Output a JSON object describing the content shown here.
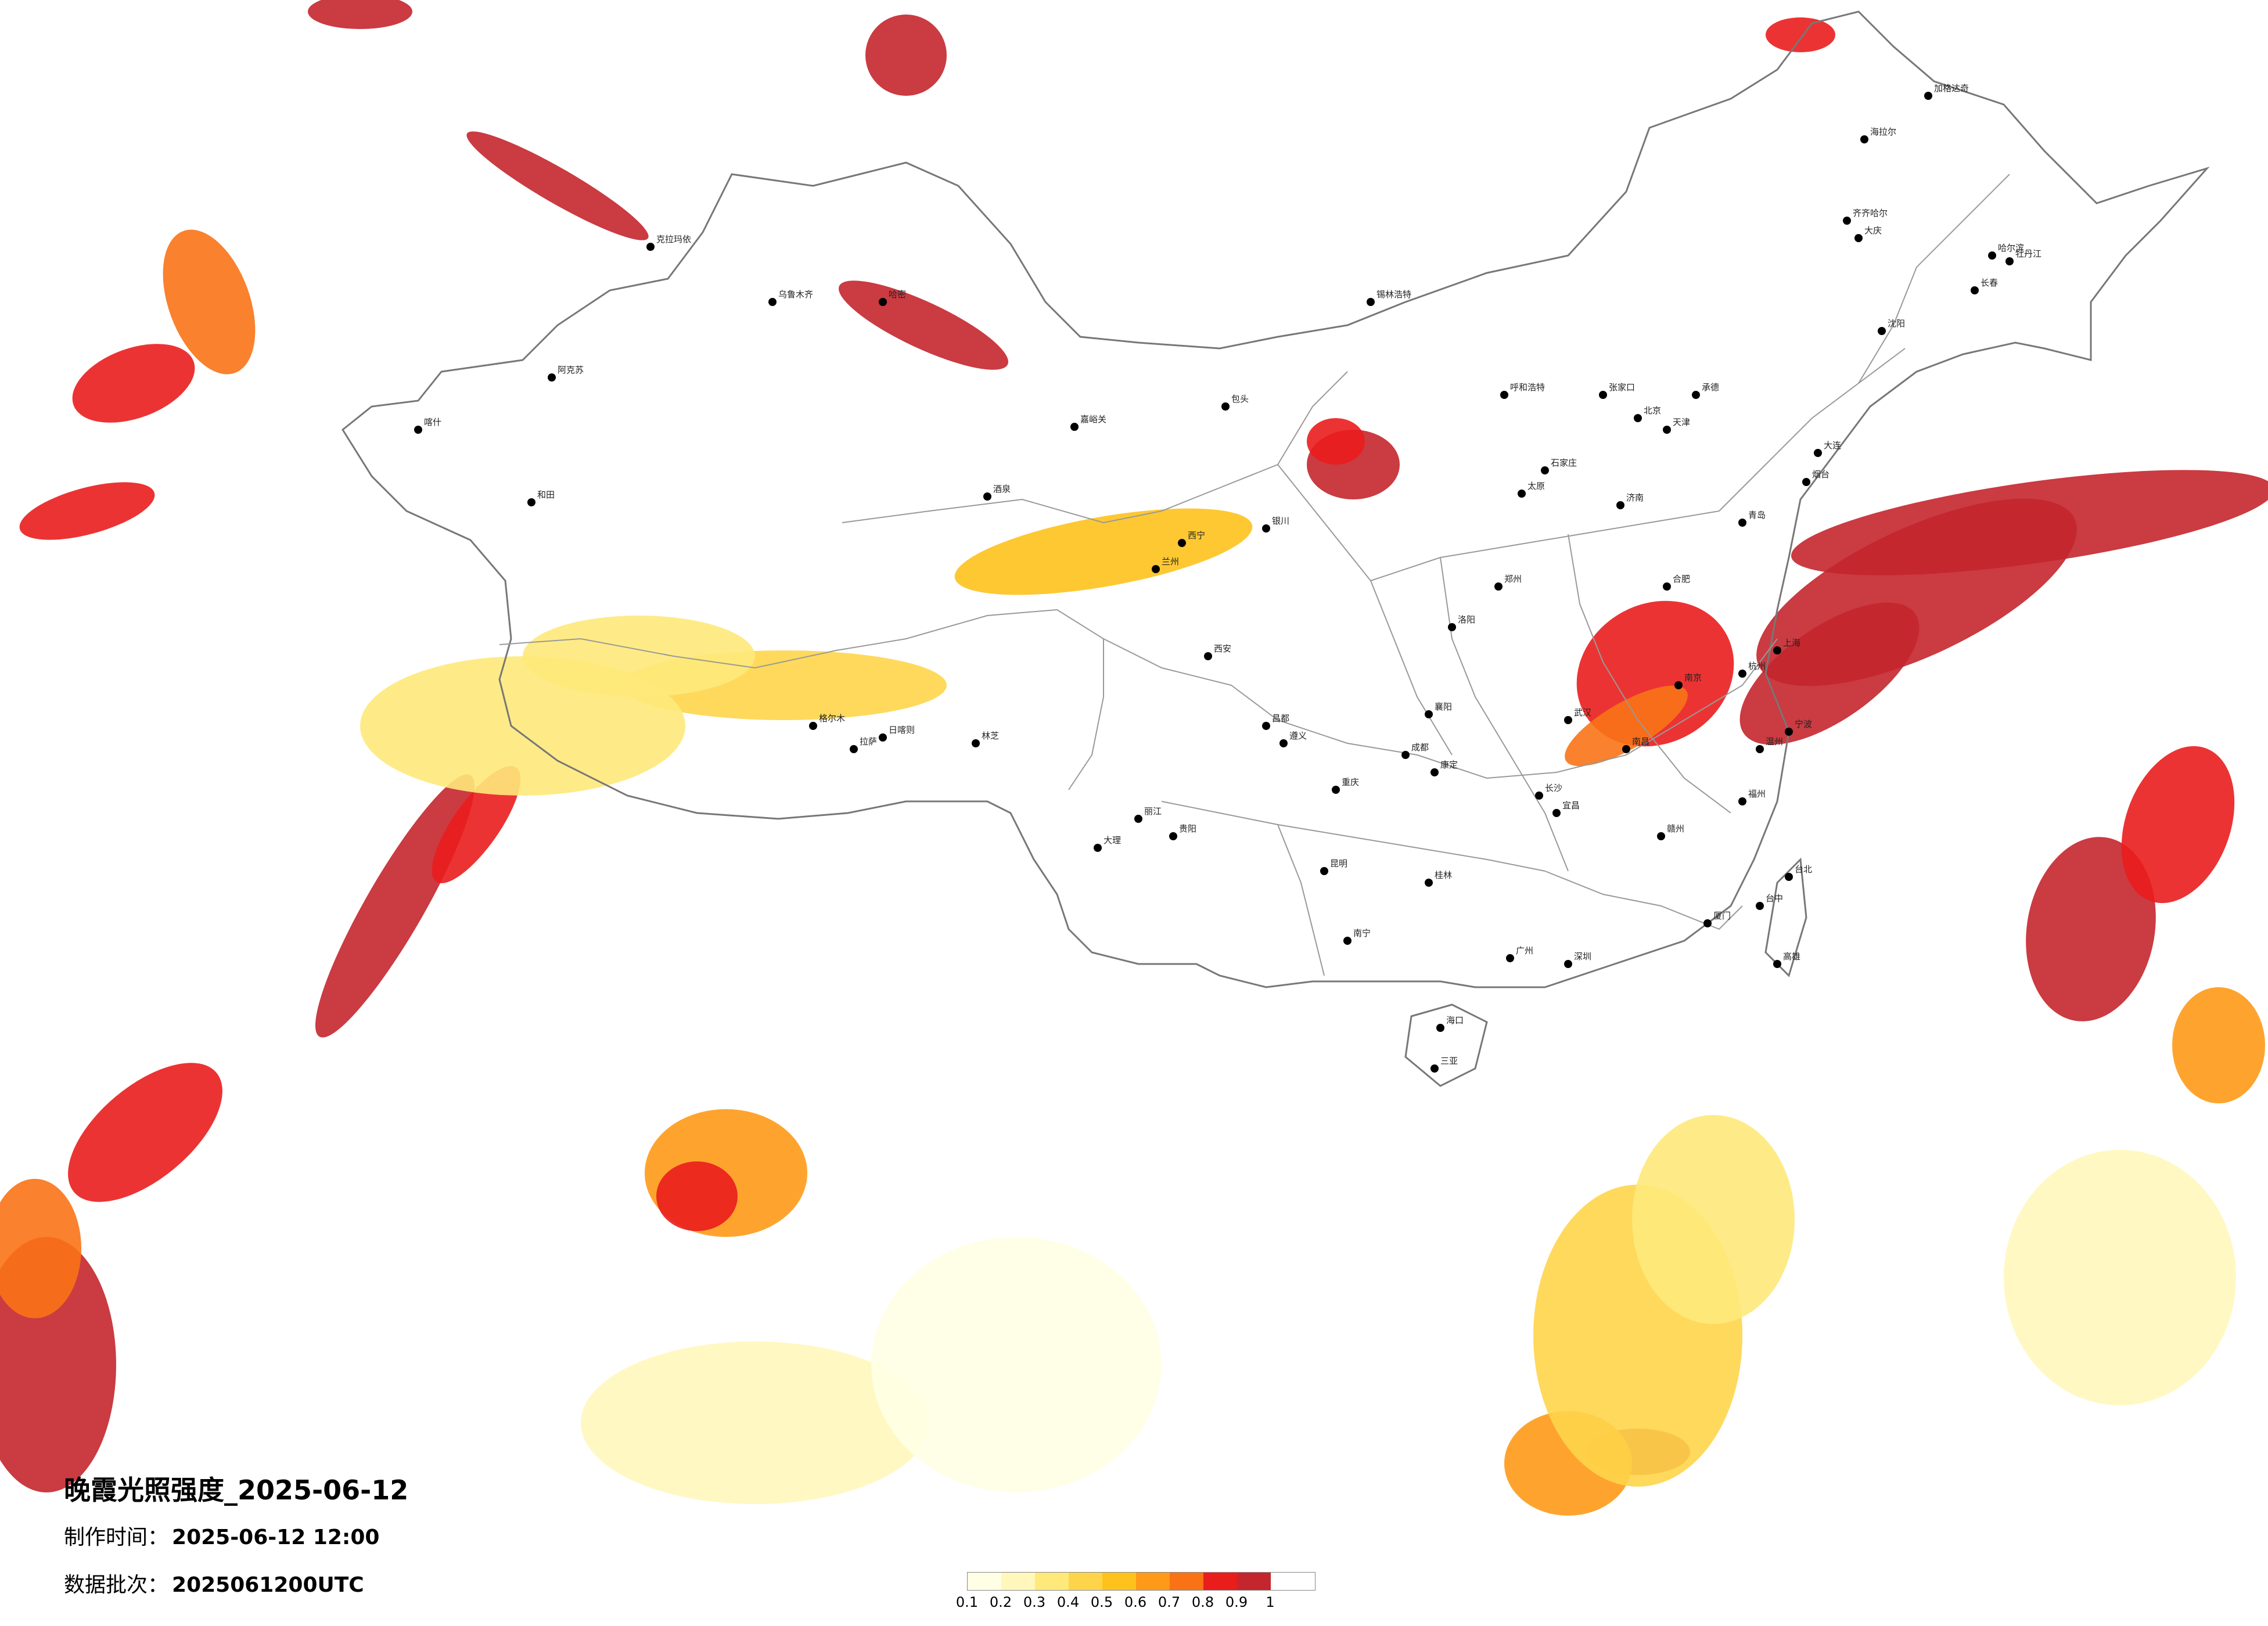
{
  "map": {
    "title": "晚霞光照强度_2025-06-12",
    "made_time_label": "制作时间：",
    "made_time_value": "2025-06-12 12:00",
    "batch_label": "数据批次：",
    "batch_value": "2025061200UTC"
  },
  "legend": {
    "ticks": [
      "0.1",
      "0.2",
      "0.3",
      "0.4",
      "0.5",
      "0.6",
      "0.7",
      "0.8",
      "0.9",
      "1"
    ],
    "colors": [
      "#ffffe5",
      "#fff7bc",
      "#fee97a",
      "#fed54a",
      "#fec21d",
      "#fe9a17",
      "#f97316",
      "#ea1d1d",
      "#c4262e"
    ]
  },
  "cities": [
    "克拉玛依",
    "乌鲁木齐",
    "阿克苏",
    "和田",
    "喀什",
    "哈密",
    "嘉峪关",
    "酒泉",
    "西宁",
    "格尔木",
    "拉萨",
    "日喀则",
    "林芝",
    "昌都",
    "康定",
    "成都",
    "重庆",
    "贵阳",
    "昆明",
    "南宁",
    "广州",
    "海口",
    "三亚",
    "长沙",
    "武汉",
    "南昌",
    "福州",
    "杭州",
    "上海",
    "南京",
    "合肥",
    "郑州",
    "济南",
    "石家庄",
    "北京",
    "天津",
    "太原",
    "呼和浩特",
    "银川",
    "兰州",
    "西安",
    "沈阳",
    "长春",
    "哈尔滨",
    "海拉尔",
    "加格达奇",
    "齐齐哈尔",
    "大庆",
    "牡丹江",
    "大连",
    "青岛",
    "厦门",
    "台北",
    "台中",
    "高雄",
    "深圳",
    "桂林",
    "遵义",
    "大理",
    "丽江",
    "包头",
    "锡林浩特",
    "张家口",
    "承德",
    "烟台",
    "洛阳",
    "襄阳",
    "宜昌",
    "赣州",
    "温州",
    "宁波"
  ]
}
